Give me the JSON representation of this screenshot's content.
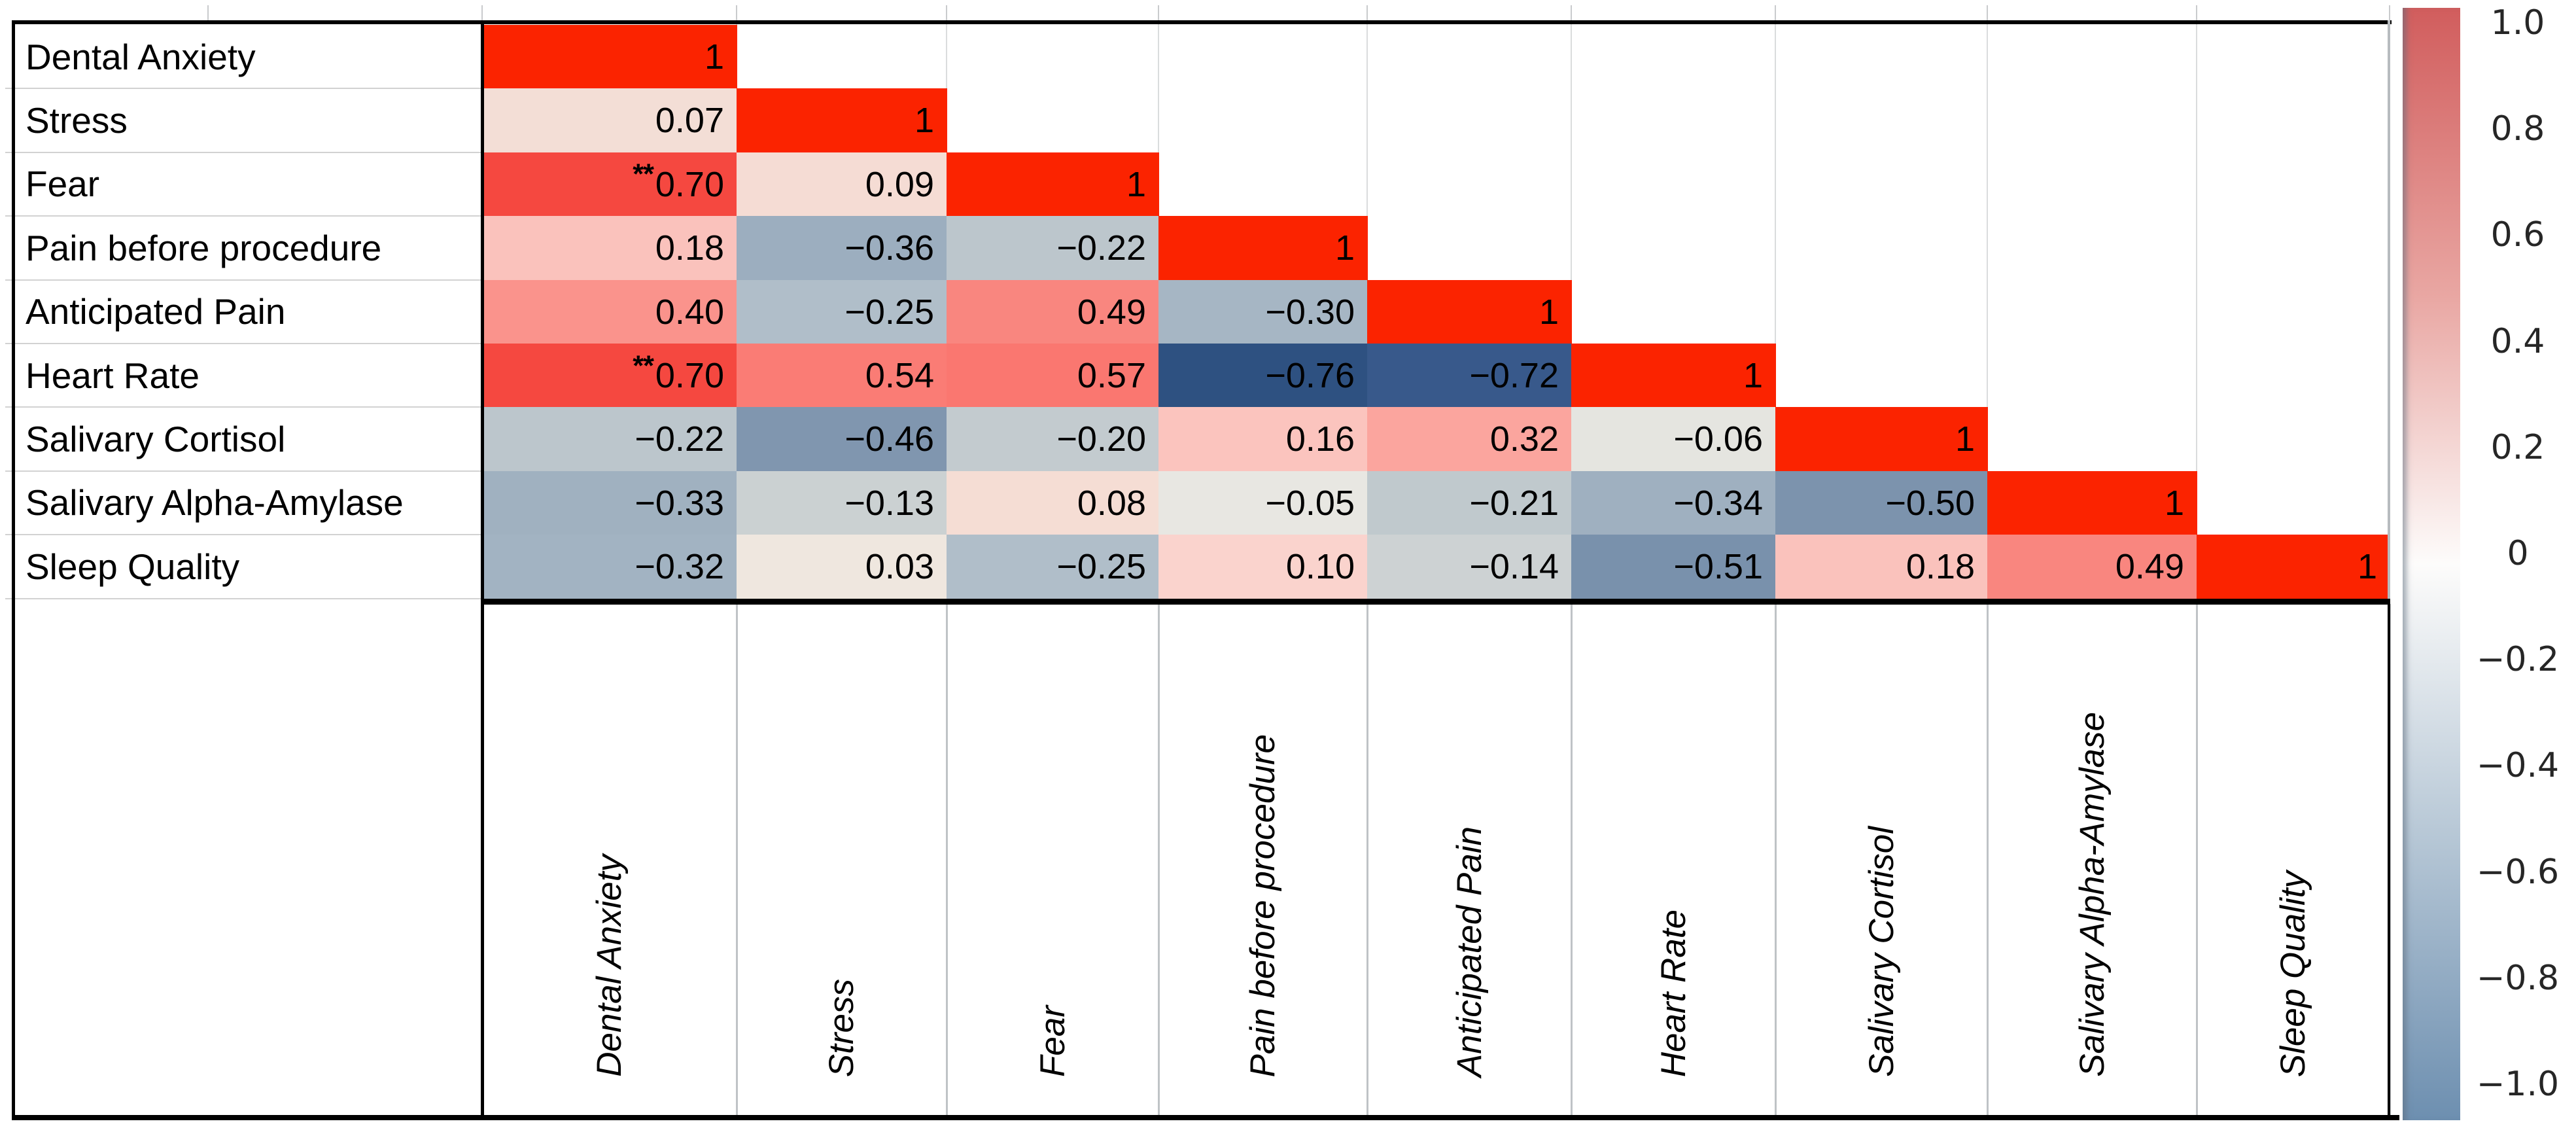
{
  "figure": {
    "kind": "correlation-matrix-heatmap",
    "background": "#ffffff",
    "grid_color": "#c9cbcd",
    "border_color": "#000000"
  },
  "chart_data": {
    "type": "heatmap",
    "title": "",
    "variables": [
      "Dental Anxiety",
      "Stress",
      "Fear",
      "Pain before procedure",
      "Anticipated Pain",
      "Heart Rate",
      "Salivary Cortisol",
      "Salivary Alpha-Amylase",
      "Sleep Quality"
    ],
    "matrix": [
      [
        1
      ],
      [
        0.07,
        1
      ],
      [
        0.7,
        0.09,
        1
      ],
      [
        0.18,
        -0.36,
        -0.22,
        1
      ],
      [
        0.4,
        -0.25,
        0.49,
        -0.3,
        1
      ],
      [
        0.7,
        0.54,
        0.57,
        -0.76,
        -0.72,
        1
      ],
      [
        -0.22,
        -0.46,
        -0.2,
        0.16,
        0.32,
        -0.06,
        1
      ],
      [
        -0.33,
        -0.13,
        0.08,
        -0.05,
        -0.21,
        -0.34,
        -0.5,
        1
      ],
      [
        -0.32,
        0.03,
        -0.25,
        0.1,
        -0.14,
        -0.51,
        0.18,
        0.49,
        1
      ]
    ],
    "significance_markers": [
      {
        "row": 2,
        "col": 0,
        "marker": "**"
      },
      {
        "row": 5,
        "col": 0,
        "marker": "**"
      }
    ],
    "value_range": [
      -1,
      1
    ],
    "layout_hints": {
      "shape": "lower-triangle",
      "row_labels_side": "left",
      "col_labels_side": "bottom-rotated-italic",
      "colorbar_position": "right"
    },
    "cell_colors": {
      "1": "#fb2300",
      "0.7": "#f54840",
      "0.57": "#fa7770",
      "0.54": "#fa7c75",
      "0.49": "#f9867f",
      "0.4": "#fa938c",
      "0.32": "#fba59e",
      "0.18": "#fac2bc",
      "0.16": "#fbc4be",
      "0.1": "#fad3cd",
      "0.09": "#f5dcd4",
      "0.08": "#f5ddd4",
      "0.07": "#f3ded6",
      "0.03": "#efe7df",
      "-0.05": "#e8e7e2",
      "-0.06": "#e5e5e0",
      "-0.13": "#cbd1d2",
      "-0.14": "#cdd2d3",
      "-0.2": "#c3cbcf",
      "-0.21": "#c0c9cd",
      "-0.22": "#bcc6cc",
      "-0.25": "#b0bec9",
      "-0.3": "#a6b6c4",
      "-0.32": "#a2b3c2",
      "-0.33": "#a0b1c0",
      "-0.34": "#9fb0c0",
      "-0.36": "#9caebf",
      "-0.46": "#8096af",
      "-0.5": "#7c93ad",
      "-0.51": "#7991ac",
      "-0.72": "#38598b",
      "-0.76": "#2e5181"
    },
    "colorbar": {
      "ticks": [
        "1.0",
        "0.8",
        "0.6",
        "0.4",
        "0.2",
        "0",
        "−0.2",
        "−0.4",
        "−0.6",
        "−0.8",
        "−1.0"
      ],
      "top_color": "#d15d5d",
      "mid_color": "#fdfcfb",
      "bottom_color": "#6d8fb0"
    },
    "minus_glyph": "−",
    "diagonal_label": "1"
  }
}
